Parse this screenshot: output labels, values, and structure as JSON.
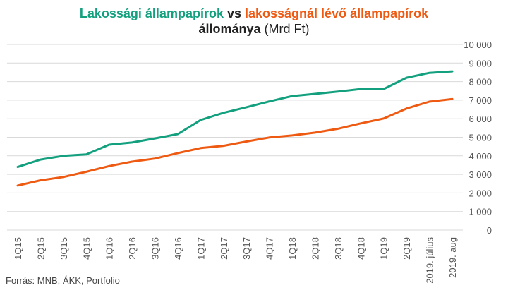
{
  "colors": {
    "series1": "#13a07e",
    "series2": "#ef5a13",
    "grid": "#d9d9d9",
    "tick_text": "#555555"
  },
  "title": {
    "part1": "Lakossági állampapírok",
    "part2": " vs ",
    "part3": "lakosságnál lévő állampapírok",
    "part4": "állománya",
    "part5": " (Mrd Ft)"
  },
  "source": "Forrás: MNB, ÁKK, Portfolio",
  "chart_data": {
    "type": "line",
    "categories": [
      "1Q15",
      "2Q15",
      "3Q15",
      "4Q15",
      "1Q16",
      "2Q16",
      "3Q16",
      "4Q16",
      "1Q17",
      "2Q17",
      "3Q17",
      "4Q17",
      "1Q18",
      "2Q18",
      "3Q18",
      "4Q18",
      "1Q19",
      "2Q19",
      "2019. július",
      "2019. aug"
    ],
    "ylim": [
      0,
      10000
    ],
    "yticks": [
      {
        "value": 0,
        "label": "0"
      },
      {
        "value": 1000,
        "label": "1 000"
      },
      {
        "value": 2000,
        "label": "2 000"
      },
      {
        "value": 3000,
        "label": "3 000"
      },
      {
        "value": 4000,
        "label": "4 000"
      },
      {
        "value": 5000,
        "label": "5 000"
      },
      {
        "value": 6000,
        "label": "6 000"
      },
      {
        "value": 7000,
        "label": "7 000"
      },
      {
        "value": 8000,
        "label": "8 000"
      },
      {
        "value": 9000,
        "label": "9 000"
      },
      {
        "value": 10000,
        "label": "10 000"
      }
    ],
    "grid": true,
    "y_axis_side": "right",
    "series": [
      {
        "name": "Lakossági állampapírok",
        "values": [
          3400,
          3800,
          4000,
          4080,
          4600,
          4720,
          4940,
          5170,
          5930,
          6320,
          6620,
          6930,
          7220,
          7340,
          7460,
          7600,
          7600,
          8210,
          8470,
          8550
        ]
      },
      {
        "name": "lakosságnál lévő állampapírok",
        "values": [
          2400,
          2680,
          2860,
          3140,
          3450,
          3690,
          3850,
          4150,
          4420,
          4540,
          4770,
          4990,
          5100,
          5250,
          5460,
          5750,
          6010,
          6550,
          6920,
          7060
        ]
      }
    ]
  }
}
